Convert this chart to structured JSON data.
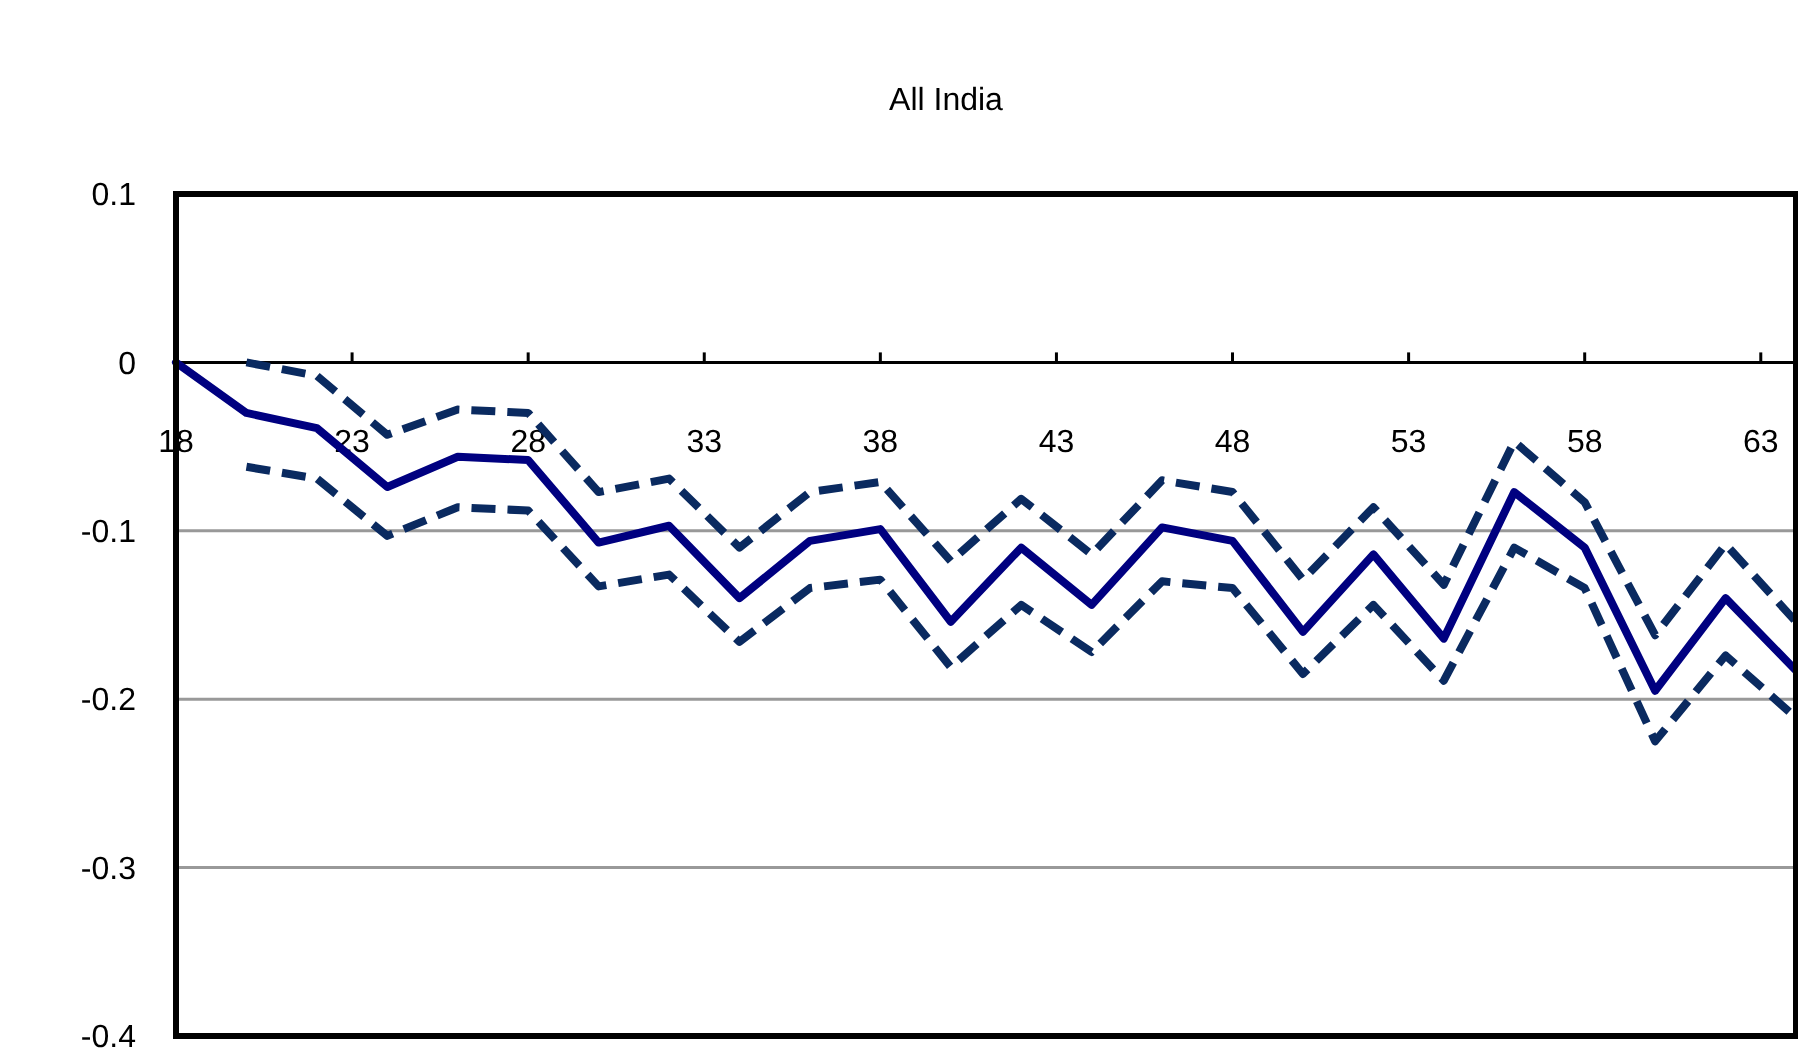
{
  "chart_data": {
    "type": "line",
    "title": "All India",
    "xlim": [
      18,
      64
    ],
    "xticks": [
      18,
      23,
      28,
      33,
      38,
      43,
      48,
      53,
      58,
      63
    ],
    "ylim": [
      -0.4,
      0.1
    ],
    "yticks": [
      -0.4,
      -0.3,
      -0.2,
      -0.1,
      0,
      0.1
    ],
    "grid": "y",
    "marker": "none",
    "x": [
      18,
      20,
      22,
      24,
      26,
      28,
      30,
      32,
      34,
      36,
      38,
      40,
      42,
      44,
      46,
      48,
      50,
      52,
      54,
      56,
      58,
      60,
      62,
      64
    ],
    "series": [
      {
        "color": "#000080",
        "line_style": "solid",
        "values": [
          0,
          -0.03,
          -0.039,
          -0.074,
          -0.056,
          -0.058,
          -0.107,
          -0.097,
          -0.14,
          -0.106,
          -0.099,
          -0.154,
          -0.11,
          -0.144,
          -0.098,
          -0.106,
          -0.16,
          -0.114,
          -0.164,
          -0.077,
          -0.11,
          -0.195,
          -0.14,
          -0.183
        ]
      },
      {
        "color": "#0a2a60",
        "line_style": "dashed",
        "x": [
          20,
          22,
          24,
          26,
          28,
          30,
          32,
          34,
          36,
          38,
          40,
          42,
          44,
          46,
          48,
          50,
          52,
          54,
          56,
          58,
          60,
          62,
          64
        ],
        "values": [
          0.0,
          -0.008,
          -0.043,
          -0.028,
          -0.03,
          -0.077,
          -0.069,
          -0.11,
          -0.077,
          -0.071,
          -0.118,
          -0.081,
          -0.114,
          -0.07,
          -0.077,
          -0.129,
          -0.086,
          -0.132,
          -0.047,
          -0.083,
          -0.162,
          -0.108,
          -0.154
        ]
      },
      {
        "color": "#0a2a60",
        "line_style": "dashed",
        "x": [
          20,
          22,
          24,
          26,
          28,
          30,
          32,
          34,
          36,
          38,
          40,
          42,
          44,
          46,
          48,
          50,
          52,
          54,
          56,
          58,
          60,
          62,
          64
        ],
        "values": [
          -0.062,
          -0.069,
          -0.103,
          -0.086,
          -0.088,
          -0.133,
          -0.126,
          -0.166,
          -0.134,
          -0.129,
          -0.181,
          -0.144,
          -0.172,
          -0.13,
          -0.134,
          -0.185,
          -0.144,
          -0.189,
          -0.11,
          -0.134,
          -0.225,
          -0.174,
          -0.211
        ]
      }
    ]
  }
}
